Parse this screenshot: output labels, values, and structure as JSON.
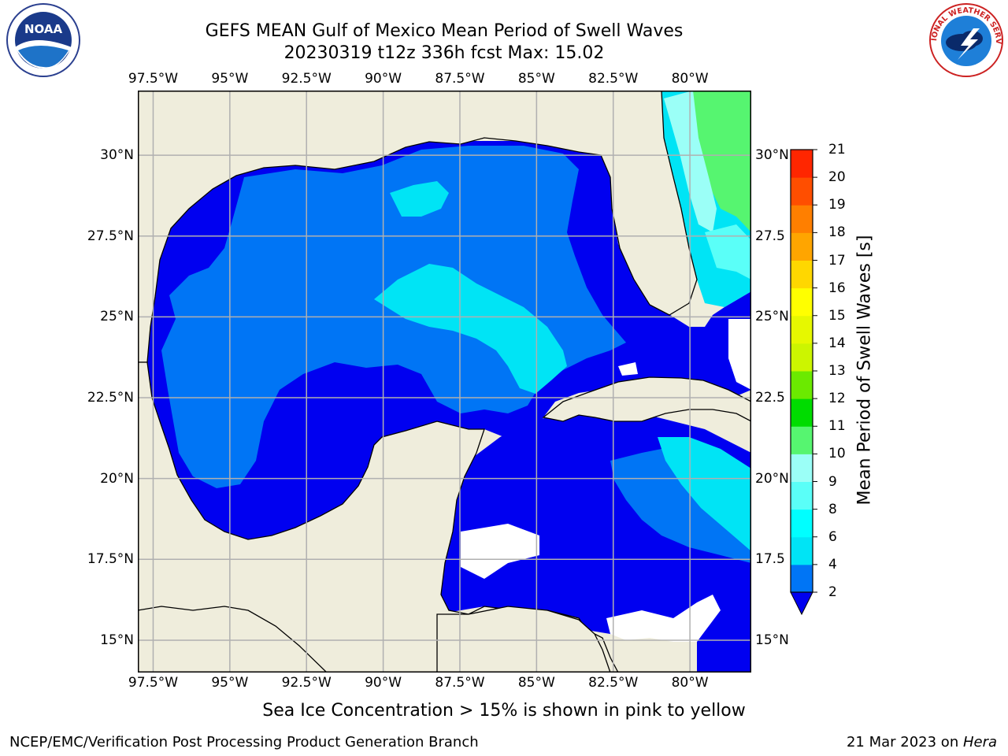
{
  "title": {
    "line1": "GEFS MEAN Gulf of Mexico Mean Period of Swell Waves",
    "line2": "20230319 t12z 336h fcst   Max: 15.02"
  },
  "map": {
    "lon_ticks": [
      "97.5°W",
      "95°W",
      "92.5°W",
      "90°W",
      "87.5°W",
      "85°W",
      "82.5°W",
      "80°W"
    ],
    "lat_ticks": [
      "30°N",
      "27.5°N",
      "25°N",
      "22.5°N",
      "20°N",
      "17.5°N",
      "15°N"
    ],
    "lat_ticks_right": [
      "30°N",
      "27.5",
      "25°N",
      "22.5",
      "20°N",
      "17.5",
      "15°N"
    ],
    "lon_range": [
      -98,
      -78
    ],
    "lat_range": [
      14,
      32
    ],
    "gridlines": true,
    "land_color": "#efeddc",
    "missing_color": "#ffffff"
  },
  "colorbar": {
    "label": "Mean Period of Swell Waves [s]",
    "ticks": [
      "2",
      "4",
      "6",
      "8",
      "9",
      "10",
      "11",
      "12",
      "13",
      "14",
      "15",
      "16",
      "17",
      "18",
      "19",
      "20",
      "21"
    ],
    "extend": "min",
    "colors": [
      "#0000f0",
      "#0075f5",
      "#00e4f5",
      "#00ffff",
      "#5afff8",
      "#9bfff7",
      "#56f570",
      "#00dc00",
      "#6bea00",
      "#ccf500",
      "#e6f800",
      "#ffff00",
      "#ffd700",
      "#ffa500",
      "#ff7f00",
      "#ff4e00",
      "#ff2600",
      "#ff0000"
    ]
  },
  "note": "Sea Ice Concentration > 15% is shown in pink to yellow",
  "footer": {
    "left": "NCEP/EMC/Verification Post Processing Product Generation Branch",
    "date": "21 Mar 2023 on ",
    "machine": "Hera"
  },
  "logos": {
    "noaa": "NOAA",
    "nws": "NATIONAL WEATHER SERVICE"
  }
}
